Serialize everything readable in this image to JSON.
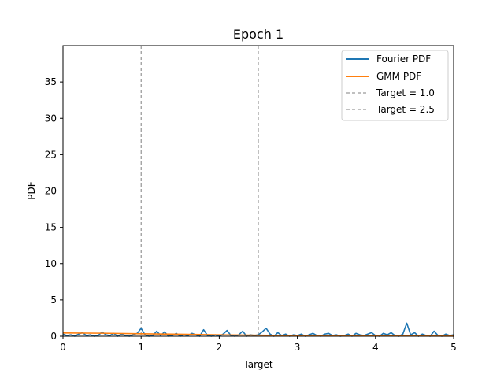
{
  "chart_data": {
    "type": "line",
    "title": "Epoch 1",
    "xlabel": "Target",
    "ylabel": "PDF",
    "xlim": [
      0,
      5
    ],
    "ylim": [
      0,
      40
    ],
    "xticks": [
      "0",
      "1",
      "2",
      "3",
      "4",
      "5"
    ],
    "yticks": [
      "0",
      "5",
      "10",
      "15",
      "20",
      "25",
      "30",
      "35"
    ],
    "grid": false,
    "legend_position": "top-right",
    "series": [
      {
        "name": "Fourier PDF",
        "color": "#1f77b4",
        "x": [
          0,
          0.05,
          0.1,
          0.15,
          0.2,
          0.25,
          0.3,
          0.35,
          0.4,
          0.45,
          0.5,
          0.55,
          0.6,
          0.65,
          0.7,
          0.75,
          0.8,
          0.85,
          0.9,
          0.95,
          1.0,
          1.05,
          1.1,
          1.15,
          1.2,
          1.25,
          1.3,
          1.35,
          1.4,
          1.45,
          1.5,
          1.55,
          1.6,
          1.65,
          1.7,
          1.75,
          1.8,
          1.85,
          1.9,
          1.95,
          2.0,
          2.05,
          2.1,
          2.15,
          2.2,
          2.25,
          2.3,
          2.35,
          2.4,
          2.45,
          2.5,
          2.55,
          2.6,
          2.65,
          2.7,
          2.75,
          2.8,
          2.85,
          2.9,
          2.95,
          3.0,
          3.05,
          3.1,
          3.15,
          3.2,
          3.25,
          3.3,
          3.35,
          3.4,
          3.45,
          3.5,
          3.55,
          3.6,
          3.65,
          3.7,
          3.75,
          3.8,
          3.85,
          3.9,
          3.95,
          4.0,
          4.05,
          4.1,
          4.15,
          4.2,
          4.25,
          4.3,
          4.35,
          4.4,
          4.45,
          4.5,
          4.55,
          4.6,
          4.65,
          4.7,
          4.75,
          4.8,
          4.85,
          4.9,
          4.95,
          5.0
        ],
        "y": [
          0.3,
          0.1,
          0.2,
          0.0,
          0.3,
          0.5,
          0.1,
          0.2,
          0.0,
          0.1,
          0.6,
          0.2,
          0.1,
          0.4,
          0.0,
          0.3,
          0.1,
          0.0,
          0.2,
          0.4,
          1.1,
          0.2,
          0.0,
          0.1,
          0.7,
          0.1,
          0.6,
          0.0,
          0.1,
          0.4,
          0.0,
          0.2,
          0.1,
          0.4,
          0.2,
          0.0,
          0.9,
          0.1,
          0.0,
          0.2,
          0.0,
          0.3,
          0.8,
          0.1,
          0.0,
          0.2,
          0.7,
          0.0,
          0.2,
          0.1,
          0.2,
          0.6,
          1.1,
          0.3,
          0.0,
          0.5,
          0.1,
          0.3,
          0.0,
          0.2,
          0.1,
          0.3,
          0.0,
          0.2,
          0.4,
          0.1,
          0.0,
          0.3,
          0.4,
          0.1,
          0.2,
          0.0,
          0.1,
          0.3,
          0.0,
          0.4,
          0.2,
          0.1,
          0.3,
          0.5,
          0.1,
          0.0,
          0.4,
          0.2,
          0.5,
          0.1,
          0.0,
          0.3,
          1.8,
          0.2,
          0.5,
          0.0,
          0.3,
          0.1,
          0.0,
          0.7,
          0.1,
          0.0,
          0.3,
          0.1,
          0.2
        ]
      },
      {
        "name": "GMM PDF",
        "color": "#ff7f0e",
        "x": [
          0,
          0.5,
          1.0,
          1.5,
          2.0,
          2.5,
          3.0,
          3.5,
          4.0,
          4.5,
          5.0
        ],
        "y": [
          0.45,
          0.42,
          0.35,
          0.28,
          0.2,
          0.15,
          0.1,
          0.07,
          0.05,
          0.03,
          0.02
        ]
      }
    ],
    "vlines": [
      {
        "label": "Target = 1.0",
        "x": 1.0,
        "color": "#808080"
      },
      {
        "label": "Target = 2.5",
        "x": 2.5,
        "color": "#808080"
      }
    ]
  }
}
